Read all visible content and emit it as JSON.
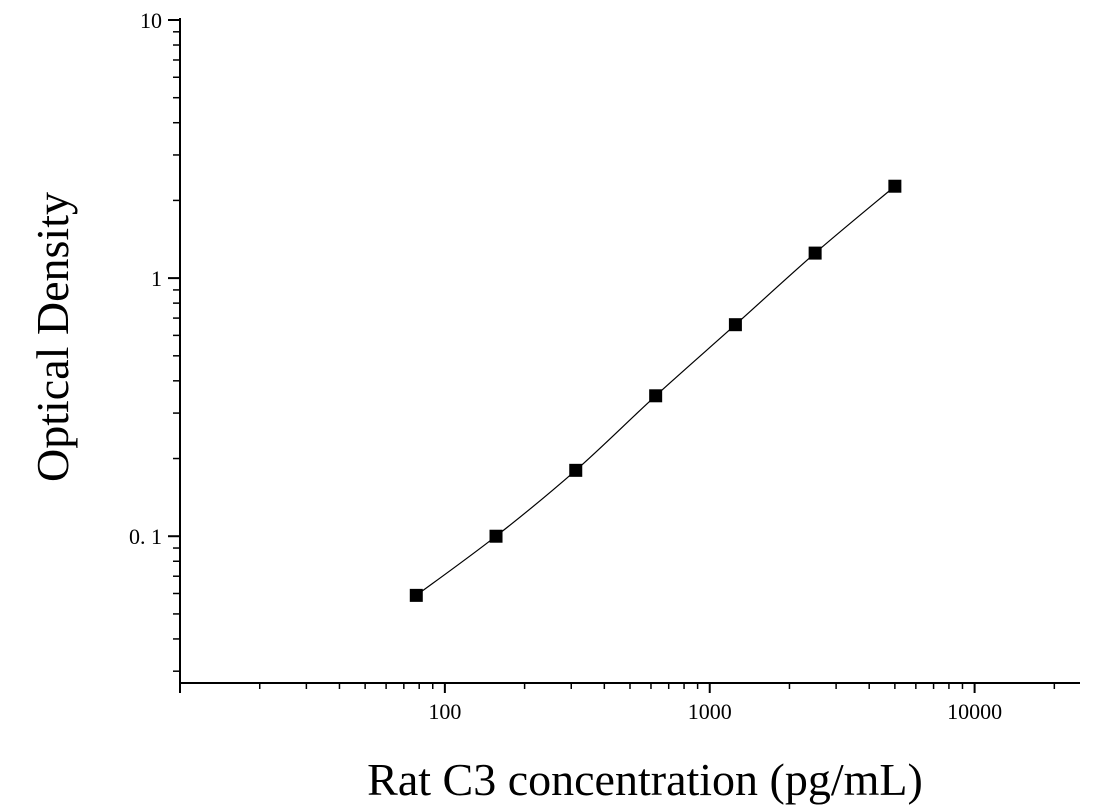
{
  "chart_data": {
    "type": "scatter",
    "title": "",
    "xlabel": "Rat C3 concentration (pg/mL)",
    "ylabel": "Optical Density",
    "x_scale": "log",
    "y_scale": "log",
    "xlim": [
      10,
      25000
    ],
    "ylim": [
      0.027,
      10
    ],
    "x_ticks": [
      {
        "value": 100,
        "label": "100"
      },
      {
        "value": 1000,
        "label": "1000"
      },
      {
        "value": 10000,
        "label": "10000"
      }
    ],
    "y_ticks": [
      {
        "value": 0.1,
        "label": "0. 1"
      },
      {
        "value": 1,
        "label": "1"
      },
      {
        "value": 10,
        "label": "10"
      }
    ],
    "grid": false,
    "legend": "none",
    "series": [
      {
        "marker": "square",
        "fit_line": true,
        "color": "#000000",
        "x": [
          78,
          156,
          312,
          625,
          1250,
          2500,
          5000
        ],
        "y": [
          0.059,
          0.1,
          0.18,
          0.35,
          0.66,
          1.25,
          2.27
        ]
      }
    ]
  }
}
